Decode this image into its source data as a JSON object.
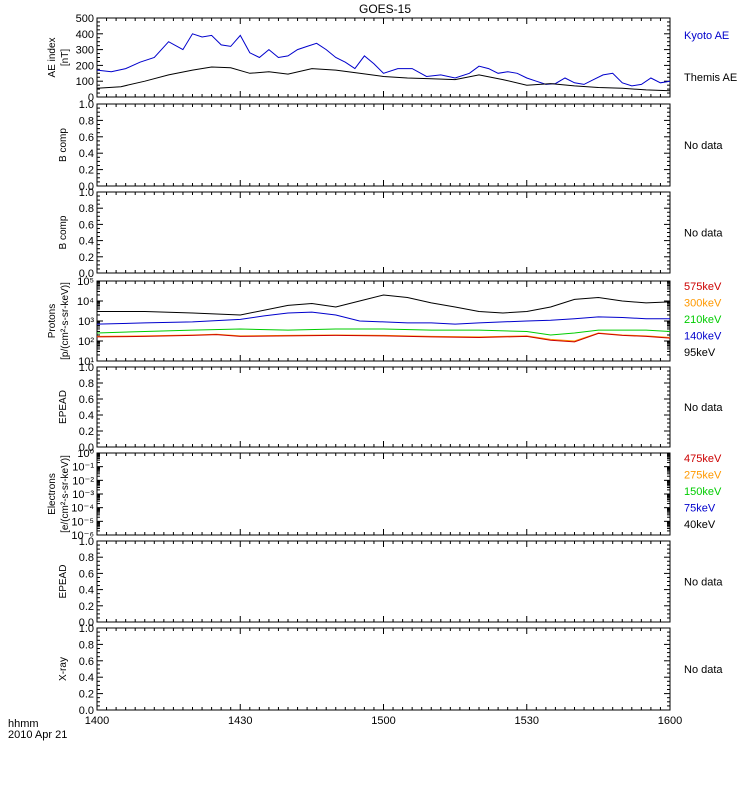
{
  "chart_data": {
    "title": "GOES-15",
    "x_footer": [
      "hhmm",
      "2010 Apr 21"
    ],
    "x_tick_labels": [
      "1400",
      "1430",
      "1500",
      "1530",
      "1600"
    ],
    "xlim_minutes": [
      0,
      120
    ],
    "panels": [
      {
        "id": "ae",
        "type": "line",
        "ylabel": [
          "AE index",
          "[nT]"
        ],
        "ylim": [
          0,
          500
        ],
        "y_tick_labels": [
          "0",
          "100",
          "200",
          "300",
          "400",
          "500"
        ],
        "series": [
          {
            "name": "Kyoto AE",
            "color": "#0000cc",
            "x": [
              0,
              3,
              6,
              9,
              12,
              15,
              18,
              20,
              22,
              24,
              26,
              28,
              30,
              32,
              34,
              36,
              38,
              40,
              42,
              44,
              46,
              48,
              50,
              52,
              54,
              56,
              58,
              60,
              63,
              66,
              69,
              72,
              75,
              78,
              80,
              82,
              84,
              86,
              88,
              90,
              92,
              94,
              96,
              98,
              100,
              102,
              104,
              106,
              108,
              110,
              112,
              114,
              116,
              118,
              120
            ],
            "y": [
              170,
              160,
              180,
              220,
              250,
              350,
              300,
              400,
              380,
              390,
              330,
              320,
              390,
              280,
              250,
              300,
              250,
              260,
              300,
              320,
              340,
              300,
              250,
              220,
              180,
              260,
              210,
              150,
              180,
              180,
              130,
              140,
              120,
              150,
              195,
              180,
              150,
              160,
              150,
              120,
              100,
              80,
              85,
              120,
              90,
              80,
              110,
              140,
              150,
              90,
              70,
              80,
              120,
              90,
              100
            ]
          },
          {
            "name": "Themis AE",
            "color": "#000000",
            "x": [
              0,
              5,
              10,
              15,
              20,
              24,
              28,
              32,
              36,
              40,
              45,
              50,
              55,
              60,
              65,
              70,
              75,
              80,
              85,
              90,
              95,
              100,
              105,
              110,
              115,
              120
            ],
            "y": [
              55,
              65,
              100,
              140,
              170,
              190,
              185,
              150,
              160,
              145,
              180,
              170,
              150,
              130,
              120,
              115,
              110,
              140,
              110,
              75,
              85,
              70,
              60,
              55,
              45,
              40
            ]
          }
        ],
        "legend": [
          "Kyoto AE",
          "Themis AE"
        ]
      },
      {
        "id": "bcomp1",
        "type": "line",
        "ylabel": [
          "B comp"
        ],
        "ylim": [
          0,
          1
        ],
        "y_tick_labels": [
          "0.0",
          "0.2",
          "0.4",
          "0.6",
          "0.8",
          "1.0"
        ],
        "note": "No data"
      },
      {
        "id": "bcomp2",
        "type": "line",
        "ylabel": [
          "B comp"
        ],
        "ylim": [
          0,
          1
        ],
        "y_tick_labels": [
          "0.0",
          "0.2",
          "0.4",
          "0.6",
          "0.8",
          "1.0"
        ],
        "note": "No data"
      },
      {
        "id": "protons",
        "type": "line",
        "yscale": "log",
        "ylabel": [
          "Protons",
          "[p/(cm²-s-sr-keV)]"
        ],
        "ylim": [
          10,
          100000
        ],
        "y_tick_labels": [
          "10¹",
          "10²",
          "10³",
          "10⁴",
          "10⁵"
        ],
        "series": [
          {
            "name": "95keV",
            "color": "#000000",
            "x": [
              0,
              10,
              20,
              30,
              40,
              45,
              50,
              55,
              60,
              65,
              70,
              75,
              80,
              85,
              90,
              95,
              100,
              105,
              110,
              115,
              120
            ],
            "y": [
              3000,
              3000,
              2500,
              2000,
              6000,
              7500,
              5000,
              10000,
              20000,
              15000,
              8000,
              5000,
              3000,
              2500,
              3000,
              5000,
              12000,
              15000,
              10000,
              8000,
              9000
            ]
          },
          {
            "name": "140keV",
            "color": "#0000cc",
            "x": [
              0,
              10,
              20,
              30,
              35,
              40,
              45,
              50,
              55,
              60,
              65,
              70,
              75,
              80,
              85,
              90,
              95,
              100,
              105,
              110,
              115,
              120
            ],
            "y": [
              700,
              800,
              900,
              1200,
              1800,
              2500,
              2800,
              2000,
              1000,
              900,
              800,
              800,
              700,
              800,
              900,
              1000,
              1100,
              1300,
              1600,
              1500,
              1300,
              1300
            ]
          },
          {
            "name": "210keV",
            "color": "#00cc00",
            "x": [
              0,
              10,
              20,
              30,
              40,
              50,
              60,
              70,
              80,
              90,
              95,
              100,
              105,
              110,
              115,
              120
            ],
            "y": [
              250,
              300,
              350,
              400,
              350,
              400,
              400,
              350,
              350,
              300,
              200,
              250,
              350,
              350,
              350,
              300
            ]
          },
          {
            "name": "300keV",
            "color": "#ff9900",
            "x": [
              0,
              10,
              20,
              25,
              30,
              40,
              50,
              60,
              70,
              80,
              90,
              95,
              100,
              105,
              110,
              115,
              120
            ],
            "y": [
              170,
              180,
              200,
              220,
              180,
              190,
              200,
              190,
              170,
              160,
              180,
              120,
              100,
              250,
              200,
              180,
              150
            ]
          },
          {
            "name": "575keV",
            "color": "#cc0000",
            "x": [
              0,
              10,
              20,
              25,
              30,
              40,
              50,
              60,
              70,
              80,
              90,
              95,
              100,
              105,
              110,
              115,
              120
            ],
            "y": [
              160,
              170,
              190,
              210,
              170,
              180,
              190,
              180,
              160,
              150,
              170,
              110,
              90,
              240,
              190,
              170,
              140
            ]
          }
        ],
        "legend": [
          "575keV",
          "300keV",
          "210keV",
          "140keV",
          "95keV"
        ]
      },
      {
        "id": "epead1",
        "type": "line",
        "ylabel": [
          "EPEAD"
        ],
        "ylim": [
          0,
          1
        ],
        "y_tick_labels": [
          "0.0",
          "0.2",
          "0.4",
          "0.6",
          "0.8",
          "1.0"
        ],
        "note": "No data"
      },
      {
        "id": "electrons",
        "type": "line",
        "yscale": "log",
        "ylabel": [
          "Electrons",
          "[e/(cm²-s-sr-keV)]"
        ],
        "ylim": [
          1e-06,
          1
        ],
        "y_tick_labels": [
          "10⁻⁶",
          "10⁻⁵",
          "10⁻⁴",
          "10⁻³",
          "10⁻²",
          "10⁻¹",
          "10⁰"
        ],
        "legend": [
          "475keV",
          "275keV",
          "150keV",
          "75keV",
          "40keV"
        ]
      },
      {
        "id": "epead2",
        "type": "line",
        "ylabel": [
          "EPEAD"
        ],
        "ylim": [
          0,
          1
        ],
        "y_tick_labels": [
          "0.0",
          "0.2",
          "0.4",
          "0.6",
          "0.8",
          "1.0"
        ],
        "note": "No data"
      },
      {
        "id": "xray",
        "type": "line",
        "ylabel": [
          "X-ray"
        ],
        "ylim": [
          0,
          1
        ],
        "y_tick_labels": [
          "0.0",
          "0.2",
          "0.4",
          "0.6",
          "0.8",
          "1.0"
        ],
        "note": "No data"
      }
    ],
    "legend_colors": {
      "electrons": [
        "#cc0000",
        "#ff9900",
        "#00cc00",
        "#0000cc",
        "#000000"
      ],
      "protons": [
        "#cc0000",
        "#ff9900",
        "#00cc00",
        "#0000cc",
        "#000000"
      ],
      "ae": [
        "#0000cc",
        "#000000"
      ]
    }
  }
}
